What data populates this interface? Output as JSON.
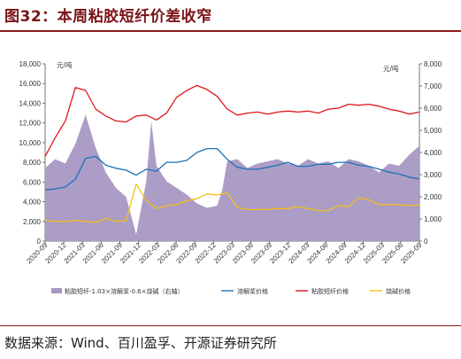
{
  "title": "图32：本周粘胶短纤价差收窄",
  "source": "数据来源：Wind、百川盈孚、开源证券研究所",
  "chart_data": {
    "type": "line",
    "left_unit": "元/吨",
    "right_unit": "元/吨",
    "left_axis": {
      "min": 0,
      "max": 18000,
      "step": 2000,
      "ticks": [
        "0",
        "2,000",
        "4,000",
        "6,000",
        "8,000",
        "10,000",
        "12,000",
        "14,000",
        "16,000",
        "18,000"
      ]
    },
    "right_axis": {
      "min": 0,
      "max": 8000,
      "step": 1000,
      "ticks": [
        "0",
        "1,000",
        "2,000",
        "3,000",
        "4,000",
        "5,000",
        "6,000",
        "7,000",
        "8,000"
      ]
    },
    "x_labels": [
      "2020-09",
      "2020-12",
      "2021-03",
      "2021-06",
      "2021-09",
      "2021-12",
      "2022-03",
      "2022-06",
      "2022-09",
      "2022-12",
      "2023-03",
      "2023-06",
      "2023-09",
      "2023-12",
      "2024-03",
      "2024-06",
      "2024-09",
      "2024-12",
      "2025-03",
      "2025-06",
      "2025-09"
    ],
    "legend": [
      "粘胶短纤-1.03×溶解浆-0.6×烧碱（右轴）",
      "溶解浆价格",
      "粘胶短纤价格",
      "烧碱价格"
    ],
    "colors": {
      "spread": "#a898c3",
      "pulp": "#1a72b8",
      "vsf": "#e0161e",
      "caustic": "#f2be1a"
    },
    "series": [
      {
        "name": "粘胶短纤-1.03×溶解浆-0.6×烧碱（右轴）",
        "axis": "right",
        "type": "area",
        "points": [
          [
            0,
            3300
          ],
          [
            1,
            3700
          ],
          [
            2,
            3500
          ],
          [
            3,
            4400
          ],
          [
            4,
            5700
          ],
          [
            5,
            4200
          ],
          [
            6,
            3100
          ],
          [
            7,
            2400
          ],
          [
            8,
            2000
          ],
          [
            9,
            300
          ],
          [
            10,
            2700
          ],
          [
            10.5,
            5400
          ],
          [
            11,
            3400
          ],
          [
            12,
            2700
          ],
          [
            13,
            2400
          ],
          [
            14,
            2100
          ],
          [
            15,
            1700
          ],
          [
            16,
            1500
          ],
          [
            17,
            1600
          ],
          [
            17.5,
            2300
          ],
          [
            18,
            3600
          ],
          [
            19,
            3700
          ],
          [
            20,
            3300
          ],
          [
            21,
            3500
          ],
          [
            22,
            3600
          ],
          [
            23,
            3700
          ],
          [
            24,
            3500
          ],
          [
            25,
            3400
          ],
          [
            26,
            3700
          ],
          [
            27,
            3500
          ],
          [
            28,
            3600
          ],
          [
            29,
            3300
          ],
          [
            30,
            3700
          ],
          [
            31,
            3600
          ],
          [
            32,
            3400
          ],
          [
            33,
            3100
          ],
          [
            34,
            3500
          ],
          [
            35,
            3400
          ],
          [
            36,
            3900
          ],
          [
            37,
            4300
          ]
        ]
      },
      {
        "name": "溶解浆价格",
        "axis": "left",
        "type": "line",
        "points": [
          [
            0,
            5200
          ],
          [
            1,
            5300
          ],
          [
            2,
            5500
          ],
          [
            3,
            6300
          ],
          [
            4,
            8400
          ],
          [
            5,
            8600
          ],
          [
            6,
            7700
          ],
          [
            7,
            7400
          ],
          [
            8,
            7200
          ],
          [
            9,
            6700
          ],
          [
            10,
            7300
          ],
          [
            11,
            7100
          ],
          [
            12,
            8000
          ],
          [
            13,
            8000
          ],
          [
            14,
            8200
          ],
          [
            15,
            9000
          ],
          [
            16,
            9400
          ],
          [
            17,
            9400
          ],
          [
            18,
            8300
          ],
          [
            19,
            7500
          ],
          [
            20,
            7300
          ],
          [
            21,
            7300
          ],
          [
            22,
            7500
          ],
          [
            23,
            7700
          ],
          [
            24,
            8000
          ],
          [
            25,
            7600
          ],
          [
            26,
            7600
          ],
          [
            27,
            7800
          ],
          [
            28,
            7800
          ],
          [
            29,
            8000
          ],
          [
            30,
            8000
          ],
          [
            31,
            7700
          ],
          [
            32,
            7600
          ],
          [
            33,
            7300
          ],
          [
            34,
            7000
          ],
          [
            35,
            6800
          ],
          [
            36,
            6500
          ],
          [
            37,
            6300
          ]
        ]
      },
      {
        "name": "粘胶短纤价格",
        "axis": "left",
        "type": "line",
        "points": [
          [
            0,
            8600
          ],
          [
            1,
            10500
          ],
          [
            2,
            12200
          ],
          [
            3,
            15600
          ],
          [
            4,
            15300
          ],
          [
            5,
            13400
          ],
          [
            6,
            12700
          ],
          [
            7,
            12200
          ],
          [
            8,
            12100
          ],
          [
            9,
            12700
          ],
          [
            10,
            12800
          ],
          [
            11,
            12300
          ],
          [
            12,
            13000
          ],
          [
            13,
            14600
          ],
          [
            14,
            15300
          ],
          [
            15,
            15800
          ],
          [
            16,
            15400
          ],
          [
            17,
            14700
          ],
          [
            18,
            13400
          ],
          [
            19,
            12800
          ],
          [
            20,
            13000
          ],
          [
            21,
            13100
          ],
          [
            22,
            12900
          ],
          [
            23,
            13100
          ],
          [
            24,
            13200
          ],
          [
            25,
            13100
          ],
          [
            26,
            13200
          ],
          [
            27,
            13000
          ],
          [
            28,
            13400
          ],
          [
            29,
            13500
          ],
          [
            30,
            13900
          ],
          [
            31,
            13800
          ],
          [
            32,
            13900
          ],
          [
            33,
            13700
          ],
          [
            34,
            13400
          ],
          [
            35,
            13200
          ],
          [
            36,
            12900
          ],
          [
            37,
            13100
          ]
        ]
      },
      {
        "name": "烧碱价格",
        "axis": "left",
        "type": "line",
        "points": [
          [
            0,
            2100
          ],
          [
            1,
            2000
          ],
          [
            2,
            2000
          ],
          [
            3,
            2100
          ],
          [
            4,
            2000
          ],
          [
            5,
            1900
          ],
          [
            6,
            2300
          ],
          [
            7,
            2000
          ],
          [
            8,
            2100
          ],
          [
            9,
            5800
          ],
          [
            10,
            4100
          ],
          [
            11,
            3300
          ],
          [
            12,
            3600
          ],
          [
            13,
            3700
          ],
          [
            14,
            4100
          ],
          [
            15,
            4300
          ],
          [
            16,
            4800
          ],
          [
            17,
            4700
          ],
          [
            18,
            4900
          ],
          [
            19,
            3400
          ],
          [
            20,
            3200
          ],
          [
            21,
            3200
          ],
          [
            22,
            3200
          ],
          [
            23,
            3300
          ],
          [
            24,
            3300
          ],
          [
            25,
            3500
          ],
          [
            26,
            3300
          ],
          [
            27,
            3100
          ],
          [
            28,
            3100
          ],
          [
            29,
            3600
          ],
          [
            30,
            3500
          ],
          [
            31,
            4400
          ],
          [
            32,
            4200
          ],
          [
            33,
            3700
          ],
          [
            34,
            3700
          ],
          [
            35,
            3700
          ],
          [
            36,
            3600
          ],
          [
            37,
            3700
          ]
        ]
      }
    ]
  }
}
